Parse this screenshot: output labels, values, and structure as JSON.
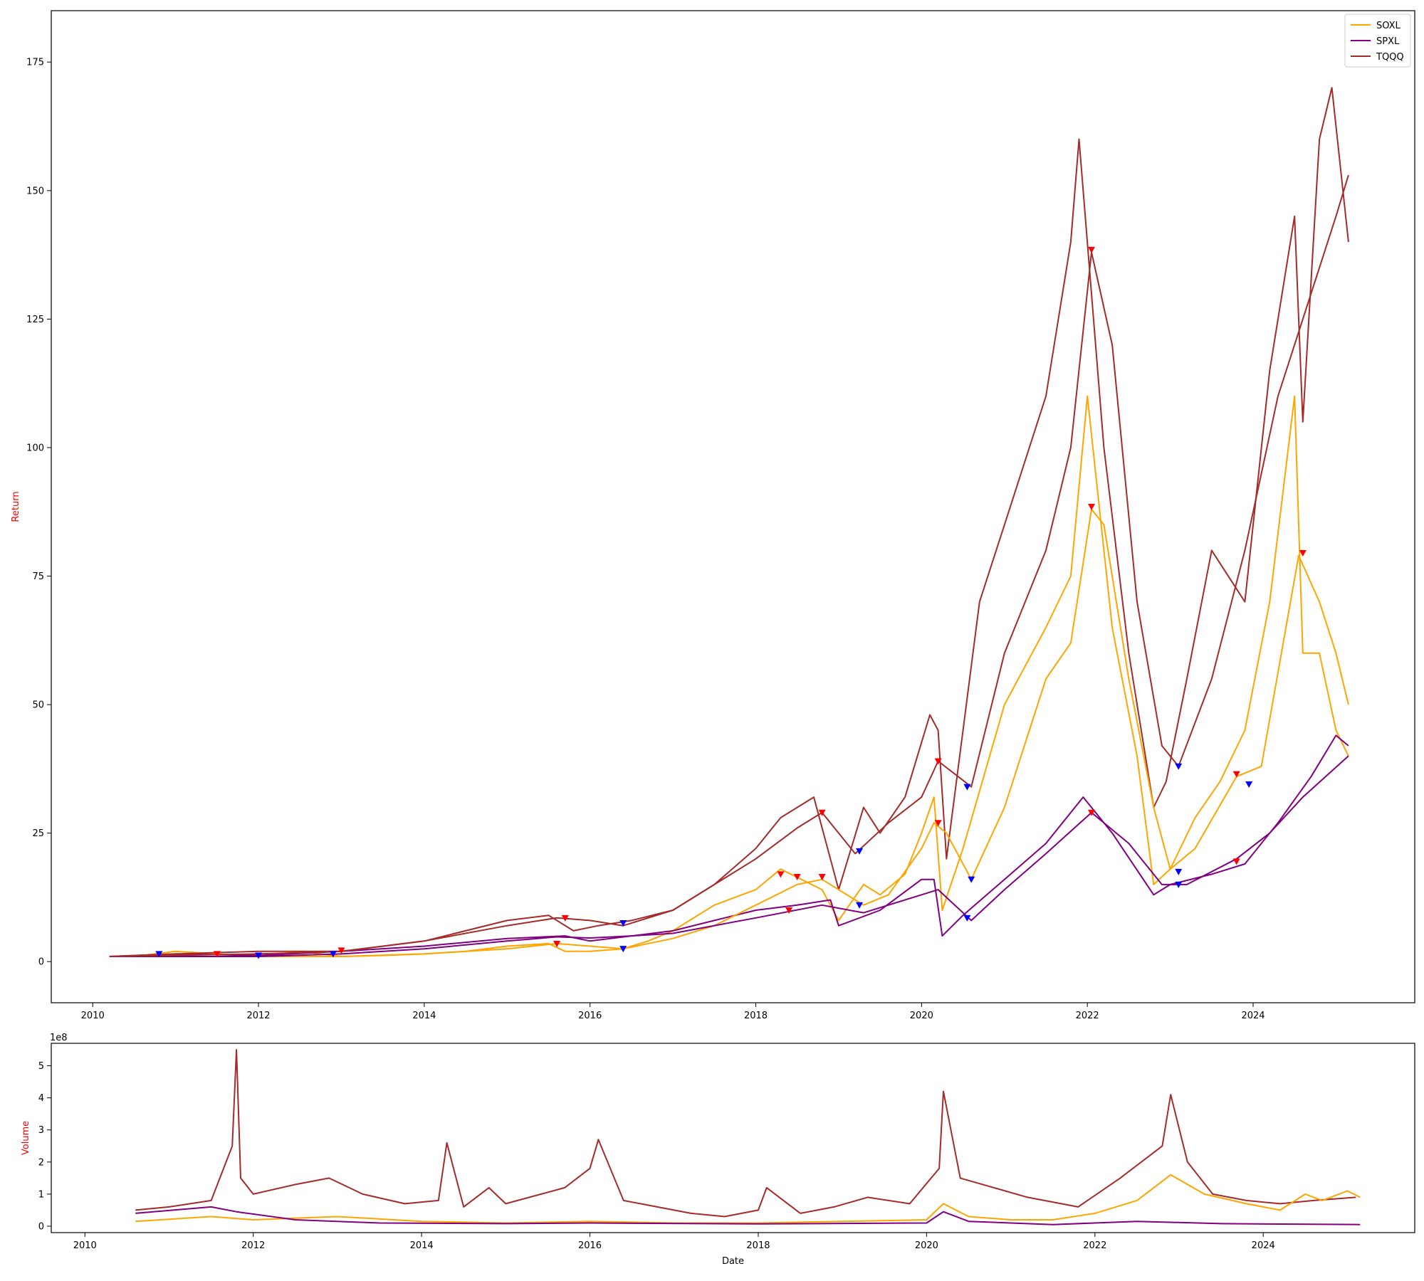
{
  "chart_data": [
    {
      "type": "line",
      "title": "",
      "xlabel": "",
      "ylabel": "Return",
      "ylabel_color": "#ff0000",
      "xlim": [
        2009.5,
        2025.95
      ],
      "ylim": [
        -8,
        185
      ],
      "x_ticks": [
        2010,
        2012,
        2014,
        2016,
        2018,
        2020,
        2022,
        2024
      ],
      "x_tick_labels": [
        "2010",
        "2012",
        "2014",
        "2016",
        "2018",
        "2020",
        "2022",
        "2024"
      ],
      "y_ticks": [
        0,
        25,
        50,
        75,
        100,
        125,
        150,
        175
      ],
      "y_tick_labels": [
        "0",
        "25",
        "50",
        "75",
        "100",
        "125",
        "150",
        "175"
      ],
      "grid": false,
      "legend_position": "top-right",
      "series": [
        {
          "name": "SOXL",
          "color": "#ffa500",
          "x": [
            2010.2,
            2010.5,
            2011.0,
            2011.5,
            2012.0,
            2012.5,
            2013.0,
            2013.5,
            2014.0,
            2014.5,
            2015.0,
            2015.5,
            2015.7,
            2016.0,
            2016.4,
            2016.7,
            2017.0,
            2017.5,
            2018.0,
            2018.3,
            2018.8,
            2019.0,
            2019.3,
            2019.5,
            2019.8,
            2020.0,
            2020.15,
            2020.25,
            2020.5,
            2021.0,
            2021.5,
            2021.8,
            2022.0,
            2022.3,
            2022.6,
            2022.8,
            2023.0,
            2023.3,
            2023.6,
            2023.9,
            2024.2,
            2024.5,
            2024.6,
            2024.8,
            2025.0,
            2025.15
          ],
          "y": [
            1,
            1,
            2,
            1.5,
            1,
            2,
            1,
            1.2,
            1.5,
            2,
            3,
            3.5,
            2,
            2,
            2.5,
            4,
            6,
            11,
            14,
            18,
            14,
            8,
            15,
            13,
            17,
            25,
            32,
            10,
            22,
            50,
            65,
            75,
            110,
            65,
            40,
            15,
            18,
            28,
            35,
            45,
            70,
            110,
            60,
            60,
            45,
            40
          ]
        },
        {
          "name": "SPXL",
          "color": "#800080",
          "x": [
            2010.2,
            2011.0,
            2012.0,
            2013.0,
            2014.0,
            2015.0,
            2015.7,
            2016.0,
            2016.5,
            2017.0,
            2017.5,
            2018.0,
            2018.5,
            2018.9,
            2019.0,
            2019.5,
            2020.0,
            2020.15,
            2020.25,
            2020.5,
            2021.0,
            2021.5,
            2021.95,
            2022.3,
            2022.8,
            2023.0,
            2023.5,
            2023.9,
            2024.3,
            2024.7,
            2025.0,
            2025.15
          ],
          "y": [
            1,
            1.5,
            1.2,
            2,
            3,
            4.5,
            5,
            4,
            5,
            6,
            8,
            10,
            11,
            12,
            7,
            10,
            16,
            16,
            5,
            9,
            16,
            23,
            32,
            25,
            13,
            15,
            17,
            19,
            27,
            36,
            44,
            42
          ]
        },
        {
          "name": "TQQQ",
          "color": "#a52a2a",
          "x": [
            2010.2,
            2011.0,
            2012.0,
            2013.0,
            2014.0,
            2015.0,
            2015.5,
            2015.8,
            2016.1,
            2016.5,
            2017.0,
            2017.5,
            2018.0,
            2018.3,
            2018.7,
            2019.0,
            2019.3,
            2019.5,
            2019.8,
            2020.1,
            2020.2,
            2020.3,
            2020.7,
            2021.0,
            2021.5,
            2021.8,
            2021.9,
            2022.2,
            2022.5,
            2022.8,
            2022.95,
            2023.2,
            2023.5,
            2023.9,
            2024.2,
            2024.5,
            2024.6,
            2024.8,
            2024.95,
            2025.15
          ],
          "y": [
            1,
            1.5,
            2,
            2,
            4,
            8,
            9,
            6,
            7,
            8,
            10,
            15,
            22,
            28,
            32,
            14,
            30,
            25,
            32,
            48,
            45,
            20,
            70,
            85,
            110,
            140,
            160,
            100,
            60,
            30,
            35,
            55,
            80,
            70,
            115,
            145,
            105,
            160,
            170,
            140
          ]
        },
        {
          "name": "",
          "color": "#ffa500",
          "x": [
            2010.2,
            2012.0,
            2013.0,
            2014.0,
            2015.0,
            2015.6,
            2016.0,
            2016.4,
            2017.0,
            2017.5,
            2018.0,
            2018.5,
            2018.8,
            2019.0,
            2019.3,
            2019.6,
            2020.0,
            2020.15,
            2020.3,
            2020.6,
            2021.0,
            2021.5,
            2021.8,
            2022.05,
            2022.2,
            2022.5,
            2022.8,
            2023.0,
            2023.3,
            2023.8,
            2024.1,
            2024.55,
            2024.8,
            2025.0,
            2025.15
          ],
          "y": [
            1,
            1,
            1,
            1.5,
            2.5,
            3.5,
            3,
            2.5,
            4.5,
            7,
            11,
            15,
            16,
            14,
            11,
            13,
            22,
            27,
            25,
            16,
            30,
            55,
            62,
            88,
            85,
            55,
            30,
            18,
            22,
            36,
            38,
            79,
            70,
            60,
            50
          ]
        },
        {
          "name": "",
          "color": "#800080",
          "x": [
            2010.2,
            2012.0,
            2013.0,
            2014.0,
            2015.0,
            2015.6,
            2016.0,
            2016.5,
            2017.0,
            2018.0,
            2018.8,
            2019.3,
            2020.0,
            2020.2,
            2020.6,
            2021.0,
            2021.5,
            2022.05,
            2022.5,
            2022.9,
            2023.2,
            2023.8,
            2024.2,
            2024.6,
            2025.15
          ],
          "y": [
            1,
            1,
            1.5,
            2.5,
            4,
            4.8,
            4.6,
            5,
            5.5,
            8.5,
            11,
            9.5,
            13,
            14,
            8,
            14,
            21,
            29,
            23,
            15,
            15,
            20,
            25,
            32,
            40
          ]
        },
        {
          "name": "",
          "color": "#a52a2a",
          "x": [
            2010.2,
            2012.0,
            2013.0,
            2014.0,
            2015.0,
            2015.6,
            2016.0,
            2016.4,
            2017.0,
            2017.5,
            2018.0,
            2018.5,
            2018.8,
            2019.2,
            2019.6,
            2020.0,
            2020.2,
            2020.6,
            2021.0,
            2021.5,
            2021.8,
            2022.05,
            2022.3,
            2022.6,
            2022.9,
            2023.1,
            2023.5,
            2023.9,
            2024.3,
            2024.6,
            2025.0,
            2025.15
          ],
          "y": [
            1,
            1.5,
            2,
            4,
            7,
            8.5,
            8,
            7,
            10,
            15,
            20,
            26,
            29,
            21,
            27,
            32,
            39,
            34,
            60,
            80,
            100,
            138,
            120,
            70,
            42,
            38,
            55,
            80,
            110,
            125,
            145,
            153
          ]
        }
      ],
      "markers": [
        {
          "x": 2010.8,
          "y": 1.5,
          "color": "#0000ff",
          "shape": "triangle-down"
        },
        {
          "x": 2011.5,
          "y": 1.5,
          "color": "#ff0000",
          "shape": "triangle-down"
        },
        {
          "x": 2012.0,
          "y": 1.2,
          "color": "#0000ff",
          "shape": "triangle-down"
        },
        {
          "x": 2012.9,
          "y": 1.5,
          "color": "#0000ff",
          "shape": "triangle-down"
        },
        {
          "x": 2013.0,
          "y": 2.2,
          "color": "#ff0000",
          "shape": "triangle-down"
        },
        {
          "x": 2015.6,
          "y": 3.5,
          "color": "#ff0000",
          "shape": "triangle-down"
        },
        {
          "x": 2015.7,
          "y": 8.5,
          "color": "#ff0000",
          "shape": "triangle-down"
        },
        {
          "x": 2016.4,
          "y": 2.5,
          "color": "#0000ff",
          "shape": "triangle-down"
        },
        {
          "x": 2016.4,
          "y": 7.5,
          "color": "#0000ff",
          "shape": "triangle-down"
        },
        {
          "x": 2018.3,
          "y": 17,
          "color": "#ff0000",
          "shape": "triangle-down"
        },
        {
          "x": 2018.4,
          "y": 10,
          "color": "#ff0000",
          "shape": "triangle-down"
        },
        {
          "x": 2018.5,
          "y": 16.5,
          "color": "#ff0000",
          "shape": "triangle-down"
        },
        {
          "x": 2018.8,
          "y": 29,
          "color": "#ff0000",
          "shape": "triangle-down"
        },
        {
          "x": 2018.8,
          "y": 16.5,
          "color": "#ff0000",
          "shape": "triangle-down"
        },
        {
          "x": 2019.25,
          "y": 21.5,
          "color": "#0000ff",
          "shape": "triangle-down"
        },
        {
          "x": 2019.25,
          "y": 11,
          "color": "#0000ff",
          "shape": "triangle-down"
        },
        {
          "x": 2020.2,
          "y": 39,
          "color": "#ff0000",
          "shape": "triangle-down"
        },
        {
          "x": 2020.2,
          "y": 27,
          "color": "#ff0000",
          "shape": "triangle-down"
        },
        {
          "x": 2020.55,
          "y": 34,
          "color": "#0000ff",
          "shape": "triangle-down"
        },
        {
          "x": 2020.6,
          "y": 16,
          "color": "#0000ff",
          "shape": "triangle-down"
        },
        {
          "x": 2020.55,
          "y": 8.5,
          "color": "#0000ff",
          "shape": "triangle-down"
        },
        {
          "x": 2022.05,
          "y": 138.5,
          "color": "#ff0000",
          "shape": "triangle-down"
        },
        {
          "x": 2022.05,
          "y": 88.5,
          "color": "#ff0000",
          "shape": "triangle-down"
        },
        {
          "x": 2022.05,
          "y": 29,
          "color": "#ff0000",
          "shape": "triangle-down"
        },
        {
          "x": 2023.1,
          "y": 38,
          "color": "#0000ff",
          "shape": "triangle-down"
        },
        {
          "x": 2023.1,
          "y": 17.5,
          "color": "#0000ff",
          "shape": "triangle-down"
        },
        {
          "x": 2023.1,
          "y": 15,
          "color": "#0000ff",
          "shape": "triangle-down"
        },
        {
          "x": 2023.8,
          "y": 36.5,
          "color": "#ff0000",
          "shape": "triangle-down"
        },
        {
          "x": 2023.8,
          "y": 19.5,
          "color": "#ff0000",
          "shape": "triangle-down"
        },
        {
          "x": 2023.95,
          "y": 34.5,
          "color": "#0000ff",
          "shape": "triangle-down"
        },
        {
          "x": 2024.6,
          "y": 79.5,
          "color": "#ff0000",
          "shape": "triangle-down"
        }
      ]
    },
    {
      "type": "line",
      "title": "",
      "xlabel": "Date",
      "ylabel": "Volume",
      "ylabel_color": "#ff0000",
      "offset_label": "1e8",
      "xlim": [
        2009.6,
        2025.8
      ],
      "ylim": [
        -0.2,
        5.7
      ],
      "x_ticks": [
        2010,
        2012,
        2014,
        2016,
        2018,
        2020,
        2022,
        2024
      ],
      "x_tick_labels": [
        "2010",
        "2012",
        "2014",
        "2016",
        "2018",
        "2020",
        "2022",
        "2024"
      ],
      "y_ticks": [
        0,
        1,
        2,
        3,
        4,
        5
      ],
      "y_tick_labels": [
        "0",
        "1",
        "2",
        "3",
        "4",
        "5"
      ],
      "grid": false,
      "series": [
        {
          "name": "TQQQ",
          "color": "#a52a2a",
          "x": [
            2010.6,
            2011.0,
            2011.5,
            2011.75,
            2011.8,
            2011.85,
            2012.0,
            2012.5,
            2012.9,
            2013.3,
            2013.8,
            2014.2,
            2014.3,
            2014.5,
            2014.8,
            2015.0,
            2015.7,
            2016.0,
            2016.1,
            2016.4,
            2016.8,
            2017.2,
            2017.6,
            2018.0,
            2018.1,
            2018.5,
            2018.9,
            2019.3,
            2019.8,
            2020.15,
            2020.2,
            2020.4,
            2020.8,
            2021.2,
            2021.8,
            2022.3,
            2022.8,
            2022.9,
            2023.1,
            2023.4,
            2023.8,
            2024.2,
            2024.6,
            2025.1
          ],
          "y": [
            0.5,
            0.6,
            0.8,
            2.5,
            5.5,
            1.5,
            1.0,
            1.3,
            1.5,
            1.0,
            0.7,
            0.8,
            2.6,
            0.6,
            1.2,
            0.7,
            1.2,
            1.8,
            2.7,
            0.8,
            0.6,
            0.4,
            0.3,
            0.5,
            1.2,
            0.4,
            0.6,
            0.9,
            0.7,
            1.8,
            4.2,
            1.5,
            1.2,
            0.9,
            0.6,
            1.5,
            2.5,
            4.1,
            2.0,
            1.0,
            0.8,
            0.7,
            0.8,
            0.9
          ]
        },
        {
          "name": "SOXL",
          "color": "#ffa500",
          "x": [
            2010.6,
            2011.5,
            2012.0,
            2013.0,
            2014.0,
            2015.0,
            2016.0,
            2017.0,
            2018.0,
            2019.0,
            2020.0,
            2020.2,
            2020.5,
            2021.0,
            2021.5,
            2022.0,
            2022.5,
            2022.9,
            2023.3,
            2023.8,
            2024.2,
            2024.5,
            2024.7,
            2025.0,
            2025.15
          ],
          "y": [
            0.15,
            0.3,
            0.2,
            0.3,
            0.15,
            0.1,
            0.15,
            0.1,
            0.1,
            0.15,
            0.2,
            0.7,
            0.3,
            0.2,
            0.2,
            0.4,
            0.8,
            1.6,
            1.0,
            0.7,
            0.5,
            1.0,
            0.8,
            1.1,
            0.9
          ]
        },
        {
          "name": "SPXL",
          "color": "#800080",
          "x": [
            2010.6,
            2011.5,
            2011.8,
            2012.5,
            2013.5,
            2015.0,
            2016.0,
            2018.0,
            2020.0,
            2020.2,
            2020.5,
            2021.5,
            2022.5,
            2023.5,
            2025.15
          ],
          "y": [
            0.4,
            0.6,
            0.45,
            0.2,
            0.1,
            0.08,
            0.1,
            0.07,
            0.1,
            0.45,
            0.15,
            0.05,
            0.15,
            0.08,
            0.05
          ]
        }
      ]
    }
  ]
}
